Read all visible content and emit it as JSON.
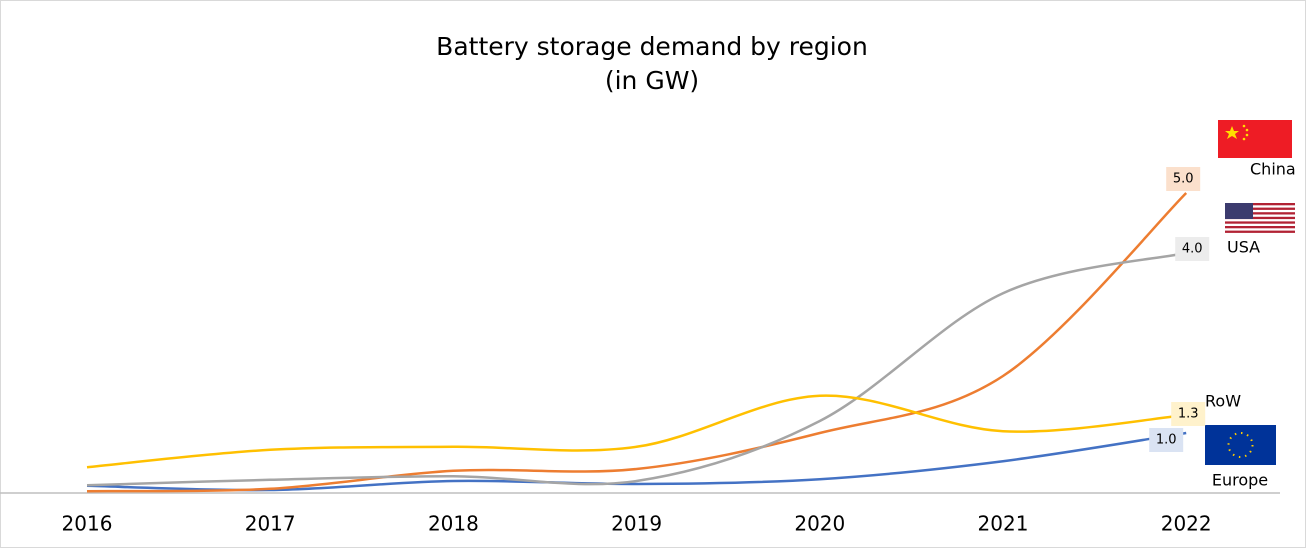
{
  "chart_data": {
    "type": "line",
    "title": "Battery storage demand by region",
    "subtitle": "(in GW)",
    "categories": [
      "2016",
      "2017",
      "2018",
      "2019",
      "2020",
      "2021",
      "2022"
    ],
    "ylim": [
      0,
      5.5
    ],
    "smooth": true,
    "series": [
      {
        "name": "Europe",
        "color": "#4472c4",
        "values": [
          0.12,
          0.05,
          0.2,
          0.15,
          0.23,
          0.53,
          1.0
        ],
        "value_labels": [
          null,
          null,
          null,
          null,
          null,
          null,
          "1.0"
        ]
      },
      {
        "name": "China",
        "color": "#ed7d31",
        "values": [
          0.03,
          0.07,
          0.37,
          0.4,
          1.0,
          1.95,
          5.0
        ],
        "value_labels": [
          null,
          null,
          null,
          null,
          null,
          null,
          "5.0"
        ]
      },
      {
        "name": "USA",
        "color": "#a5a5a5",
        "values": [
          0.13,
          0.22,
          0.28,
          0.2,
          1.2,
          3.33,
          4.0
        ],
        "value_labels": [
          null,
          null,
          null,
          null,
          null,
          null,
          "4.0"
        ]
      },
      {
        "name": "RoW",
        "color": "#ffc000",
        "values": [
          0.43,
          0.72,
          0.77,
          0.77,
          1.62,
          1.03,
          1.3
        ],
        "value_labels": [
          null,
          null,
          null,
          null,
          null,
          null,
          "1.3"
        ]
      }
    ]
  }
}
